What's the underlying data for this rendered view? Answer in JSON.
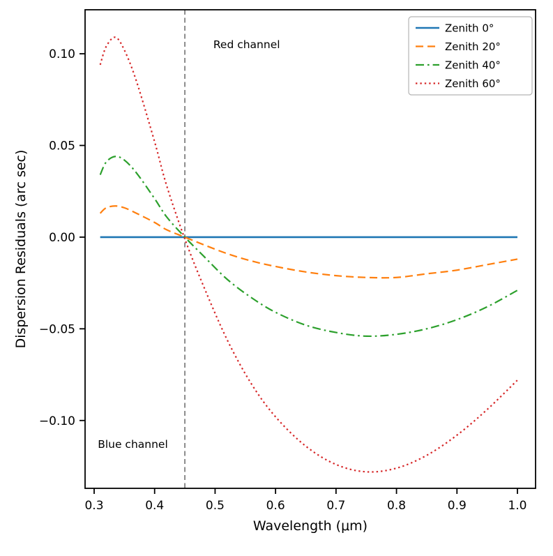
{
  "chart_data": {
    "type": "line",
    "title": "",
    "xlabel": "Wavelength (μm)",
    "ylabel": "Dispersion Residuals (arc sec)",
    "xlim": [
      0.285,
      1.03
    ],
    "ylim": [
      -0.137,
      0.124
    ],
    "grid": false,
    "xtick_values": [
      0.3,
      0.4,
      0.5,
      0.6,
      0.7,
      0.8,
      0.9,
      1.0
    ],
    "xtick_labels": [
      "0.3",
      "0.4",
      "0.5",
      "0.6",
      "0.7",
      "0.8",
      "0.9",
      "1.0"
    ],
    "ytick_values": [
      0.1,
      0.05,
      0.0,
      -0.05,
      -0.1
    ],
    "ytick_labels": [
      "0.10",
      "0.05",
      "0.00",
      "−0.05",
      "−0.10"
    ],
    "x": [
      0.31,
      0.32,
      0.335,
      0.35,
      0.37,
      0.4,
      0.42,
      0.45,
      0.48,
      0.52,
      0.56,
      0.6,
      0.65,
      0.7,
      0.75,
      0.8,
      0.85,
      0.9,
      0.95,
      1.0
    ],
    "series": [
      {
        "name": "Zenith 0°",
        "color": "#1f77b4",
        "style": "solid",
        "width": 2.6,
        "values": [
          0,
          0,
          0,
          0,
          0,
          0,
          0,
          0,
          0,
          0,
          0,
          0,
          0,
          0,
          0,
          0,
          0,
          0,
          0,
          0
        ]
      },
      {
        "name": "Zenith 20°",
        "color": "#ff7f0e",
        "style": "dashed",
        "width": 2.2,
        "values": [
          0.013,
          0.016,
          0.017,
          0.016,
          0.013,
          0.008,
          0.004,
          0.0,
          -0.004,
          -0.009,
          -0.013,
          -0.016,
          -0.019,
          -0.021,
          -0.022,
          -0.022,
          -0.02,
          -0.018,
          -0.015,
          -0.012
        ]
      },
      {
        "name": "Zenith 40°",
        "color": "#2ca02c",
        "style": "dashdot",
        "width": 2.2,
        "values": [
          0.034,
          0.041,
          0.044,
          0.042,
          0.035,
          0.021,
          0.011,
          0.0,
          -0.01,
          -0.023,
          -0.033,
          -0.041,
          -0.048,
          -0.052,
          -0.054,
          -0.053,
          -0.05,
          -0.045,
          -0.038,
          -0.029
        ]
      },
      {
        "name": "Zenith 60°",
        "color": "#d62728",
        "style": "dotted",
        "width": 2.2,
        "values": [
          0.094,
          0.104,
          0.109,
          0.102,
          0.085,
          0.052,
          0.028,
          -0.001,
          -0.026,
          -0.056,
          -0.08,
          -0.098,
          -0.114,
          -0.124,
          -0.128,
          -0.126,
          -0.119,
          -0.108,
          -0.094,
          -0.078
        ]
      }
    ],
    "vline": {
      "x": 0.45,
      "color": "#808080",
      "style": "dashed"
    },
    "annotations": [
      {
        "text": "Red channel",
        "x": 0.497,
        "y": 0.103,
        "color": "#ff0000"
      },
      {
        "text": "Blue channel",
        "x": 0.306,
        "y": -0.115,
        "color": "#0000ff"
      }
    ],
    "legend": {
      "position": "upper right"
    }
  }
}
